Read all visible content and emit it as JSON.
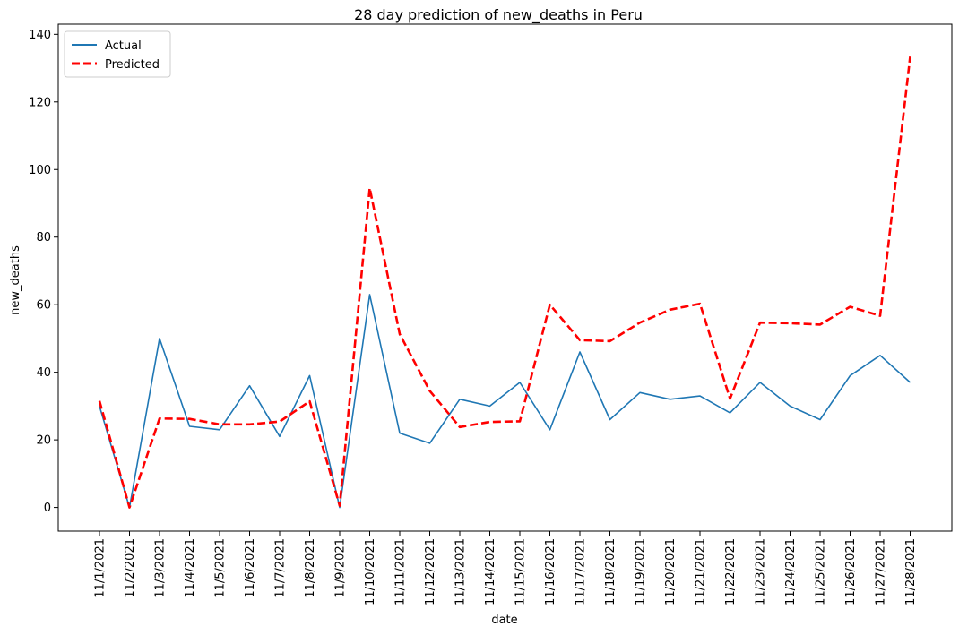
{
  "chart_data": {
    "type": "line",
    "title": "28 day prediction of new_deaths in Peru",
    "xlabel": "date",
    "ylabel": "new_deaths",
    "ylim": [
      -7,
      143
    ],
    "yticks": [
      0,
      20,
      40,
      60,
      80,
      100,
      120,
      140
    ],
    "categories": [
      "11/1/2021",
      "11/2/2021",
      "11/3/2021",
      "11/4/2021",
      "11/5/2021",
      "11/6/2021",
      "11/7/2021",
      "11/8/2021",
      "11/9/2021",
      "11/10/2021",
      "11/11/2021",
      "11/12/2021",
      "11/13/2021",
      "11/14/2021",
      "11/15/2021",
      "11/16/2021",
      "11/17/2021",
      "11/18/2021",
      "11/19/2021",
      "11/20/2021",
      "11/21/2021",
      "11/22/2021",
      "11/23/2021",
      "11/24/2021",
      "11/25/2021",
      "11/26/2021",
      "11/27/2021",
      "11/28/2021"
    ],
    "series": [
      {
        "name": "Actual",
        "color": "#1f77b4",
        "style": "solid",
        "values": [
          30,
          0,
          50,
          24,
          23,
          36,
          21,
          39,
          0,
          63,
          22,
          19,
          32,
          30,
          37,
          23,
          46,
          26,
          34,
          32,
          33,
          28,
          37,
          30,
          26,
          39,
          45,
          37
        ]
      },
      {
        "name": "Predicted",
        "color": "#ff0000",
        "style": "dashed",
        "values": [
          31.5,
          0,
          26.3,
          26.2,
          24.6,
          24.6,
          25.4,
          31.4,
          0.5,
          94.5,
          51.3,
          34.5,
          23.8,
          25.3,
          25.5,
          60,
          49.5,
          49.2,
          54.7,
          58.5,
          60.3,
          32.2,
          54.7,
          54.5,
          54.1,
          59.4,
          56.7,
          133.4
        ]
      }
    ],
    "grid": false,
    "legend_position": "top-left"
  }
}
